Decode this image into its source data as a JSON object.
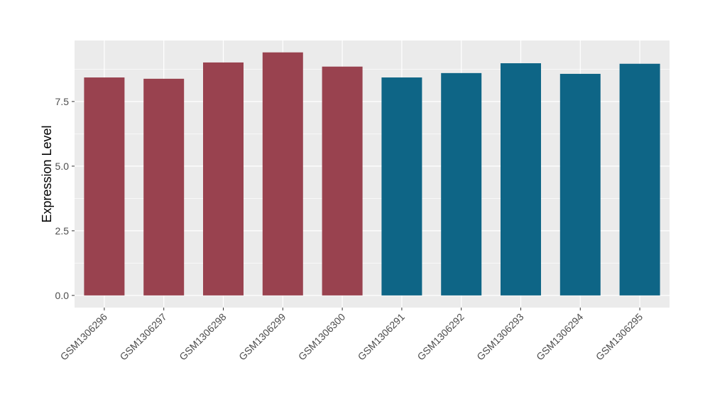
{
  "chart_data": {
    "type": "bar",
    "y_label": "Expression Level",
    "categories": [
      "GSM1306296",
      "GSM1306297",
      "GSM1306298",
      "GSM1306299",
      "GSM1306300",
      "GSM1306291",
      "GSM1306292",
      "GSM1306293",
      "GSM1306294",
      "GSM1306295"
    ],
    "values": [
      8.43,
      8.38,
      9.01,
      9.4,
      8.85,
      8.43,
      8.6,
      8.98,
      8.57,
      8.96
    ],
    "colors": [
      "#99424f",
      "#99424f",
      "#99424f",
      "#99424f",
      "#99424f",
      "#0e6586",
      "#0e6586",
      "#0e6586",
      "#0e6586",
      "#0e6586"
    ],
    "ylim": [
      -0.47,
      9.86
    ],
    "yticks": [
      {
        "value": 0,
        "label": "0.0"
      },
      2.5,
      {
        "value": 5,
        "label": "5.0"
      },
      7.5
    ],
    "grid": true
  }
}
